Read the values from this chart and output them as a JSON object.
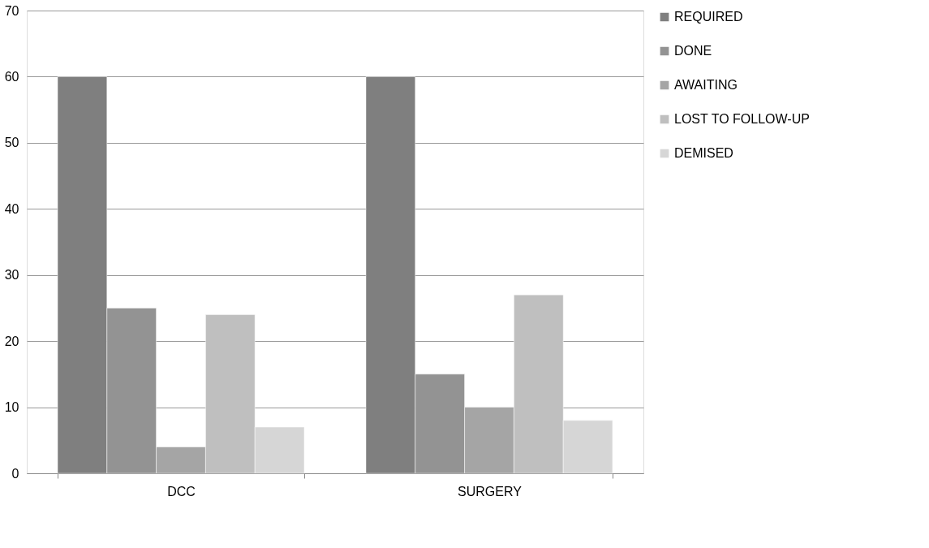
{
  "chart_data": {
    "type": "bar",
    "categories": [
      "DCC",
      "SURGERY"
    ],
    "series": [
      {
        "name": "REQUIRED",
        "color": "#7f7f7f",
        "values": [
          60,
          60
        ]
      },
      {
        "name": "DONE",
        "color": "#939393",
        "values": [
          25,
          15
        ]
      },
      {
        "name": "AWAITING",
        "color": "#a5a5a5",
        "values": [
          4,
          10
        ]
      },
      {
        "name": "LOST TO FOLLOW-UP",
        "color": "#bfbfbf",
        "values": [
          24,
          27
        ]
      },
      {
        "name": "DEMISED",
        "color": "#d6d6d6",
        "values": [
          7,
          8
        ]
      }
    ],
    "ylim": [
      0,
      70
    ],
    "yticks": [
      0,
      10,
      20,
      30,
      40,
      50,
      60,
      70
    ],
    "grid": "y",
    "legend": "right"
  }
}
